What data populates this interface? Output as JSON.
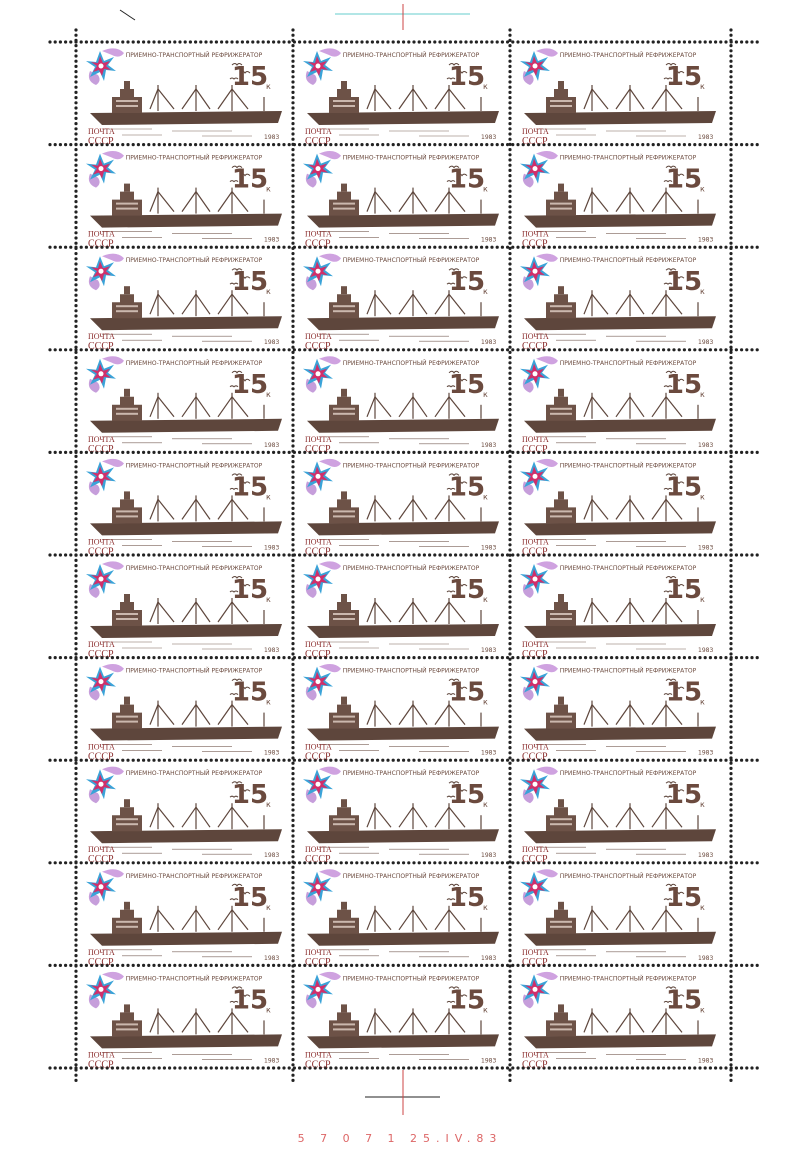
{
  "stamp": {
    "title": "ПРИЕМНО-ТРАНСПОРТНЫЙ РЕФРИЖЕРАТОР",
    "denomination": "15",
    "currency": "к",
    "post": "ПОЧТА",
    "country": "СССР",
    "year": "1983"
  },
  "margin_text": "5 7 0 7 1 25.IV.83"
}
